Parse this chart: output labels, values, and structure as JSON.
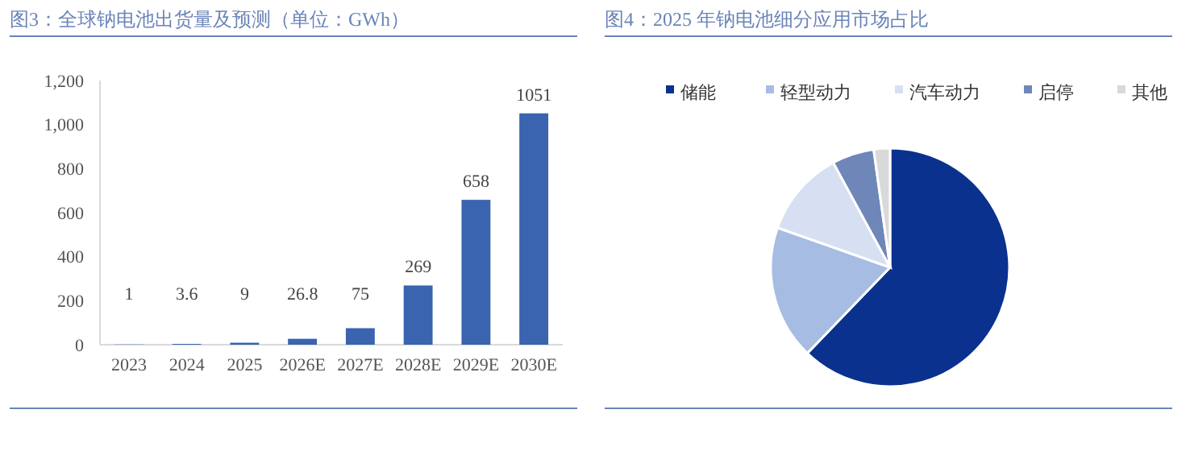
{
  "chart_data": [
    {
      "type": "bar",
      "title": "图3：全球钠电池出货量及预测（单位：GWh）",
      "categories": [
        "2023",
        "2024",
        "2025",
        "2026E",
        "2027E",
        "2028E",
        "2029E",
        "2030E"
      ],
      "values": [
        1,
        3.6,
        9,
        26.8,
        75,
        269,
        658,
        1051
      ],
      "color": "#3a63b0",
      "ylim": [
        0,
        1200
      ],
      "yticks": [
        0,
        {
          "value": 200,
          "label": "200"
        },
        {
          "value": 400,
          "label": "400"
        },
        {
          "value": 600,
          "label": "600"
        },
        {
          "value": 800,
          "label": "800"
        },
        {
          "value": 1000,
          "label": "1,000"
        },
        {
          "value": 1200,
          "label": "1,200"
        }
      ],
      "data_labels": true
    },
    {
      "type": "pie",
      "title": "图4：2025 年钠电池细分应用市场占比",
      "categories": [
        "储能",
        "轻型动力",
        "汽车动力",
        "启停",
        "其他"
      ],
      "values": [
        62.2,
        18.2,
        11.7,
        5.7,
        2.2
      ],
      "colors": [
        "#0b318f",
        "#a7bce2",
        "#d6e0f2",
        "#6f86b9",
        "#d9d9d9"
      ],
      "legend": "top"
    }
  ]
}
